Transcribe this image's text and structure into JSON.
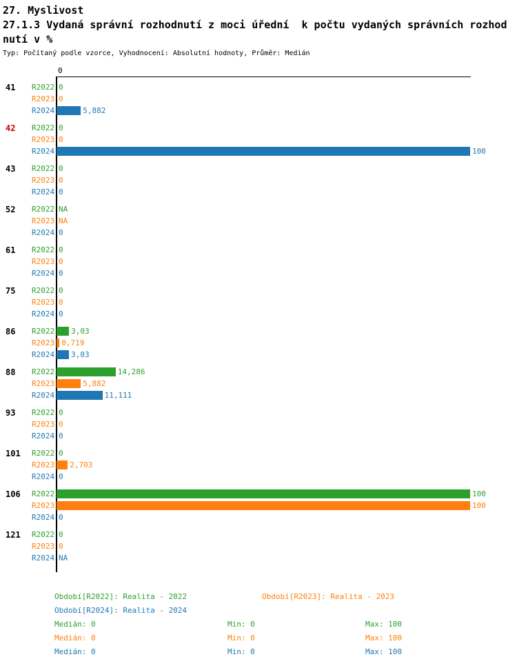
{
  "header": {
    "title": "27. Myslivost",
    "subtitle_line1": "27.1.3 Vydaná správní rozhodnutí z moci úřední  k počtu vydaných správních rozhod",
    "subtitle_line2": "nutí v %",
    "meta": "Typ: Počítaný podle vzorce, Vyhodnocení: Absolutní hodnoty, Průměr: Medián"
  },
  "colors": {
    "r2022": "#2ca02c",
    "r2023": "#ff7f0e",
    "r2024": "#1f77b4",
    "highlight": "#cc0000",
    "axis": "#000000"
  },
  "chart_data": {
    "type": "bar",
    "orientation": "horizontal",
    "title": "27.1.3 Vydaná správní rozhodnutí z moci úřední k počtu vydaných správních rozhodnutí v %",
    "xlim": [
      0,
      100
    ],
    "axis_tick": "0",
    "series": [
      "R2022",
      "R2023",
      "R2024"
    ],
    "groups": [
      {
        "category": "41",
        "highlight": false,
        "bars": [
          {
            "series": "R2022",
            "value": 0,
            "display": "0"
          },
          {
            "series": "R2023",
            "value": 0,
            "display": "0"
          },
          {
            "series": "R2024",
            "value": 5.882,
            "display": "5,882"
          }
        ]
      },
      {
        "category": "42",
        "highlight": true,
        "bars": [
          {
            "series": "R2022",
            "value": 0,
            "display": "0"
          },
          {
            "series": "R2023",
            "value": 0,
            "display": "0"
          },
          {
            "series": "R2024",
            "value": 100,
            "display": "100"
          }
        ]
      },
      {
        "category": "43",
        "highlight": false,
        "bars": [
          {
            "series": "R2022",
            "value": 0,
            "display": "0"
          },
          {
            "series": "R2023",
            "value": 0,
            "display": "0"
          },
          {
            "series": "R2024",
            "value": 0,
            "display": "0"
          }
        ]
      },
      {
        "category": "52",
        "highlight": false,
        "bars": [
          {
            "series": "R2022",
            "value": null,
            "display": "NA"
          },
          {
            "series": "R2023",
            "value": null,
            "display": "NA"
          },
          {
            "series": "R2024",
            "value": 0,
            "display": "0"
          }
        ]
      },
      {
        "category": "61",
        "highlight": false,
        "bars": [
          {
            "series": "R2022",
            "value": 0,
            "display": "0"
          },
          {
            "series": "R2023",
            "value": 0,
            "display": "0"
          },
          {
            "series": "R2024",
            "value": 0,
            "display": "0"
          }
        ]
      },
      {
        "category": "75",
        "highlight": false,
        "bars": [
          {
            "series": "R2022",
            "value": 0,
            "display": "0"
          },
          {
            "series": "R2023",
            "value": 0,
            "display": "0"
          },
          {
            "series": "R2024",
            "value": 0,
            "display": "0"
          }
        ]
      },
      {
        "category": "86",
        "highlight": false,
        "bars": [
          {
            "series": "R2022",
            "value": 3.03,
            "display": "3,03"
          },
          {
            "series": "R2023",
            "value": 0.719,
            "display": "0,719"
          },
          {
            "series": "R2024",
            "value": 3.03,
            "display": "3,03"
          }
        ]
      },
      {
        "category": "88",
        "highlight": false,
        "bars": [
          {
            "series": "R2022",
            "value": 14.286,
            "display": "14,286"
          },
          {
            "series": "R2023",
            "value": 5.882,
            "display": "5,882"
          },
          {
            "series": "R2024",
            "value": 11.111,
            "display": "11,111"
          }
        ]
      },
      {
        "category": "93",
        "highlight": false,
        "bars": [
          {
            "series": "R2022",
            "value": 0,
            "display": "0"
          },
          {
            "series": "R2023",
            "value": 0,
            "display": "0"
          },
          {
            "series": "R2024",
            "value": 0,
            "display": "0"
          }
        ]
      },
      {
        "category": "101",
        "highlight": false,
        "bars": [
          {
            "series": "R2022",
            "value": 0,
            "display": "0"
          },
          {
            "series": "R2023",
            "value": 2.703,
            "display": "2,703"
          },
          {
            "series": "R2024",
            "value": 0,
            "display": "0"
          }
        ]
      },
      {
        "category": "106",
        "highlight": false,
        "bars": [
          {
            "series": "R2022",
            "value": 100,
            "display": "100"
          },
          {
            "series": "R2023",
            "value": 100,
            "display": "100"
          },
          {
            "series": "R2024",
            "value": 0,
            "display": "0"
          }
        ]
      },
      {
        "category": "121",
        "highlight": false,
        "bars": [
          {
            "series": "R2022",
            "value": 0,
            "display": "0"
          },
          {
            "series": "R2023",
            "value": 0,
            "display": "0"
          },
          {
            "series": "R2024",
            "value": null,
            "display": "NA"
          }
        ]
      }
    ]
  },
  "legend": {
    "r2022": "Období[R2022]: Realita - 2022",
    "r2023": "Období[R2023]: Realita - 2023",
    "r2024": "Období[R2024]: Realita - 2024"
  },
  "stats": {
    "r2022": {
      "median": "Medián: 0",
      "min": "Min: 0",
      "max": "Max: 100"
    },
    "r2023": {
      "median": "Medián: 0",
      "min": "Min: 0",
      "max": "Max: 100"
    },
    "r2024": {
      "median": "Medián: 0",
      "min": "Min: 0",
      "max": "Max: 100"
    }
  }
}
